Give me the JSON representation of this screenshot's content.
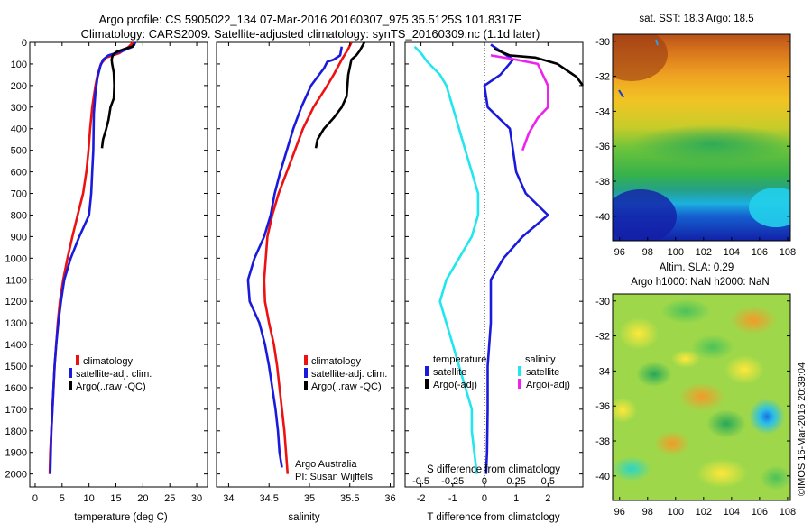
{
  "header": {
    "line1": "Argo profile: CS 5905022_134 07-Mar-2016 20160307_975 35.5125S 101.8317E",
    "line2": "Climatology: CARS2009. Satellite-adjusted climatology: synTS_20160309.nc (1.1d later)"
  },
  "colors": {
    "climatology": "#ee1111",
    "satellite": "#1a1add",
    "argo": "#000000",
    "sal_satellite": "#22e6ee",
    "sal_argo": "#ee22ee"
  },
  "chart_data": [
    {
      "type": "line",
      "name": "temperature-profile",
      "xlabel": "temperature (deg C)",
      "xlim": [
        -1,
        32
      ],
      "xticks": [
        "0",
        "5",
        "10",
        "15",
        "20",
        "25",
        "30"
      ],
      "ylim": [
        2060,
        0
      ],
      "yticks": [
        "0",
        "100",
        "200",
        "300",
        "400",
        "500",
        "600",
        "700",
        "800",
        "900",
        "1000",
        "1100",
        "1200",
        "1300",
        "1400",
        "1500",
        "1600",
        "1700",
        "1800",
        "1900",
        "2000"
      ],
      "legend": [
        "climatology",
        "satellite-adj. clim.",
        "Argo(..raw -QC)"
      ],
      "series": [
        {
          "name": "climatology",
          "points": [
            [
              18.2,
              0
            ],
            [
              17.4,
              20
            ],
            [
              15.6,
              50
            ],
            [
              13.2,
              70
            ],
            [
              12.2,
              100
            ],
            [
              11.6,
              150
            ],
            [
              11.2,
              200
            ],
            [
              10.6,
              300
            ],
            [
              10.2,
              400
            ],
            [
              9.9,
              500
            ],
            [
              9.5,
              600
            ],
            [
              8.9,
              700
            ],
            [
              7.9,
              800
            ],
            [
              6.9,
              900
            ],
            [
              6.0,
              1000
            ],
            [
              5.2,
              1100
            ],
            [
              4.6,
              1200
            ],
            [
              4.2,
              1300
            ],
            [
              3.9,
              1400
            ],
            [
              3.6,
              1500
            ],
            [
              3.4,
              1600
            ],
            [
              3.2,
              1700
            ],
            [
              3.0,
              1800
            ],
            [
              2.8,
              1900
            ],
            [
              2.7,
              2000
            ]
          ]
        },
        {
          "name": "satellite-adj. clim.",
          "points": [
            [
              18.6,
              0
            ],
            [
              18.1,
              20
            ],
            [
              16.2,
              40
            ],
            [
              13.6,
              60
            ],
            [
              12.6,
              80
            ],
            [
              12.1,
              110
            ],
            [
              11.6,
              160
            ],
            [
              11.2,
              230
            ],
            [
              10.9,
              330
            ],
            [
              10.8,
              500
            ],
            [
              10.6,
              600
            ],
            [
              10.4,
              700
            ],
            [
              10.0,
              800
            ],
            [
              8.2,
              900
            ],
            [
              6.6,
              1000
            ],
            [
              5.4,
              1100
            ],
            [
              4.8,
              1200
            ],
            [
              4.3,
              1300
            ],
            [
              3.9,
              1400
            ],
            [
              3.6,
              1500
            ],
            [
              3.4,
              1600
            ],
            [
              3.2,
              1700
            ],
            [
              3.0,
              1800
            ],
            [
              2.9,
              1900
            ],
            [
              2.8,
              2000
            ]
          ]
        },
        {
          "name": "Argo(..raw -QC)",
          "points": [
            [
              18.5,
              8
            ],
            [
              18.0,
              20
            ],
            [
              16.6,
              30
            ],
            [
              15.0,
              45
            ],
            [
              14.4,
              60
            ],
            [
              14.2,
              80
            ],
            [
              14.3,
              100
            ],
            [
              14.6,
              140
            ],
            [
              14.7,
              200
            ],
            [
              14.6,
              260
            ],
            [
              14.0,
              300
            ],
            [
              13.6,
              360
            ],
            [
              13.2,
              400
            ],
            [
              12.6,
              450
            ],
            [
              12.4,
              490
            ]
          ]
        }
      ]
    },
    {
      "type": "line",
      "name": "salinity-profile",
      "xlabel": "salinity",
      "xlim": [
        33.85,
        36.05
      ],
      "xticks": [
        "34",
        "34.5",
        "35",
        "35.5",
        "36"
      ],
      "ylim": [
        2060,
        0
      ],
      "legend": [
        "climatology",
        "satellite-adj. clim.",
        "Argo(..raw -QC)"
      ],
      "annotation": [
        "Argo Australia",
        "PI: Susan Wijffels"
      ],
      "series": [
        {
          "name": "climatology",
          "points": [
            [
              35.52,
              0
            ],
            [
              35.48,
              30
            ],
            [
              35.4,
              80
            ],
            [
              35.3,
              150
            ],
            [
              35.22,
              200
            ],
            [
              35.05,
              300
            ],
            [
              34.92,
              400
            ],
            [
              34.82,
              500
            ],
            [
              34.72,
              600
            ],
            [
              34.62,
              700
            ],
            [
              34.54,
              800
            ],
            [
              34.48,
              900
            ],
            [
              34.46,
              1000
            ],
            [
              34.44,
              1100
            ],
            [
              34.45,
              1200
            ],
            [
              34.5,
              1300
            ],
            [
              34.56,
              1400
            ],
            [
              34.6,
              1500
            ],
            [
              34.63,
              1600
            ],
            [
              34.66,
              1700
            ],
            [
              34.69,
              1800
            ],
            [
              34.71,
              1900
            ],
            [
              34.73,
              2000
            ]
          ]
        },
        {
          "name": "satellite-adj. clim.",
          "points": [
            [
              35.4,
              20
            ],
            [
              35.38,
              60
            ],
            [
              35.3,
              80
            ],
            [
              35.22,
              90
            ],
            [
              35.18,
              120
            ],
            [
              35.12,
              150
            ],
            [
              35.02,
              200
            ],
            [
              34.9,
              300
            ],
            [
              34.8,
              400
            ],
            [
              34.72,
              500
            ],
            [
              34.64,
              600
            ],
            [
              34.57,
              700
            ],
            [
              34.52,
              800
            ],
            [
              34.44,
              900
            ],
            [
              34.32,
              1000
            ],
            [
              34.24,
              1100
            ],
            [
              34.26,
              1200
            ],
            [
              34.38,
              1300
            ],
            [
              34.45,
              1400
            ],
            [
              34.5,
              1500
            ],
            [
              34.54,
              1600
            ],
            [
              34.58,
              1700
            ],
            [
              34.61,
              1800
            ],
            [
              34.63,
              1900
            ],
            [
              34.66,
              1970
            ]
          ]
        },
        {
          "name": "Argo(..raw -QC)",
          "points": [
            [
              35.68,
              0
            ],
            [
              35.62,
              40
            ],
            [
              35.58,
              60
            ],
            [
              35.52,
              80
            ],
            [
              35.48,
              150
            ],
            [
              35.46,
              250
            ],
            [
              35.4,
              300
            ],
            [
              35.3,
              350
            ],
            [
              35.18,
              400
            ],
            [
              35.1,
              450
            ],
            [
              35.08,
              490
            ]
          ]
        }
      ]
    },
    {
      "type": "line",
      "name": "difference-from-climatology",
      "xlabel": "T difference from climatology",
      "xlabel_top": "S difference from climatology",
      "xlim": [
        -2.5,
        3.1
      ],
      "xticks": [
        "-2",
        "-1",
        "0",
        "1",
        "2"
      ],
      "xticks_top": [
        "-0.5",
        "-0.25",
        "0",
        "0.25",
        "0.5"
      ],
      "ylim": [
        2060,
        0
      ],
      "legend_title": [
        "temperature",
        "salinity"
      ],
      "legend": [
        "satellite",
        "Argo(-adj)",
        "satellite",
        "Argo(-adj)"
      ],
      "series": [
        {
          "name": "T satellite",
          "points": [
            [
              0.2,
              10
            ],
            [
              0.6,
              50
            ],
            [
              0.9,
              80
            ],
            [
              0.5,
              150
            ],
            [
              0,
              200
            ],
            [
              0.1,
              300
            ],
            [
              0.8,
              400
            ],
            [
              0.9,
              500
            ],
            [
              1.0,
              600
            ],
            [
              1.3,
              700
            ],
            [
              2.0,
              800
            ],
            [
              1.2,
              900
            ],
            [
              0.6,
              1000
            ],
            [
              0.2,
              1100
            ],
            [
              0.2,
              1300
            ],
            [
              0.1,
              1500
            ],
            [
              0.1,
              1700
            ],
            [
              0.08,
              1900
            ],
            [
              0.05,
              2000
            ]
          ]
        },
        {
          "name": "T Argo(-adj)",
          "points": [
            [
              0.3,
              30
            ],
            [
              0.8,
              60
            ],
            [
              1.6,
              70
            ],
            [
              2.3,
              100
            ],
            [
              2.9,
              160
            ],
            [
              3.1,
              200
            ]
          ]
        },
        {
          "name": "S satellite",
          "points": [
            [
              -0.55,
              20
            ],
            [
              -0.5,
              50
            ],
            [
              -0.45,
              90
            ],
            [
              -0.35,
              150
            ],
            [
              -0.3,
              200
            ],
            [
              -0.25,
              300
            ],
            [
              -0.2,
              400
            ],
            [
              -0.15,
              500
            ],
            [
              -0.1,
              600
            ],
            [
              -0.05,
              700
            ],
            [
              -0.05,
              800
            ],
            [
              -0.1,
              900
            ],
            [
              -0.2,
              1000
            ],
            [
              -0.3,
              1100
            ],
            [
              -0.35,
              1200
            ],
            [
              -0.3,
              1300
            ],
            [
              -0.25,
              1400
            ],
            [
              -0.2,
              1500
            ],
            [
              -0.15,
              1600
            ],
            [
              -0.1,
              1700
            ],
            [
              -0.1,
              1800
            ],
            [
              -0.08,
              1900
            ],
            [
              -0.06,
              2000
            ]
          ]
        },
        {
          "name": "S Argo(-adj)",
          "points": [
            [
              0.05,
              60
            ],
            [
              0.25,
              80
            ],
            [
              0.42,
              100
            ],
            [
              0.5,
              200
            ],
            [
              0.5,
              300
            ],
            [
              0.42,
              350
            ],
            [
              0.35,
              420
            ],
            [
              0.3,
              500
            ]
          ]
        }
      ]
    },
    {
      "type": "heatmap",
      "name": "sst-map",
      "title": "sat. SST: 18.3 Argo: 18.5",
      "xticks": [
        "96",
        "98",
        "100",
        "102",
        "104",
        "106",
        "108"
      ],
      "yticks": [
        "-30",
        "-32",
        "-34",
        "-36",
        "-38",
        "-40"
      ],
      "xlim": [
        95.5,
        108.2
      ],
      "ylim": [
        -41.4,
        -29.6
      ]
    },
    {
      "type": "heatmap",
      "name": "sla-map",
      "title": "Altim. SLA: 0.29",
      "subtitle": "Argo h1000: NaN h2000: NaN",
      "xticks": [
        "96",
        "98",
        "100",
        "102",
        "104",
        "106",
        "108"
      ],
      "yticks": [
        "-30",
        "-32",
        "-34",
        "-36",
        "-38",
        "-40"
      ],
      "xlim": [
        95.5,
        108.2
      ],
      "ylim": [
        -41.4,
        -29.6
      ]
    }
  ],
  "footer": {
    "watermark": "©IMOS 16-Mar-2016 20:39:04"
  }
}
